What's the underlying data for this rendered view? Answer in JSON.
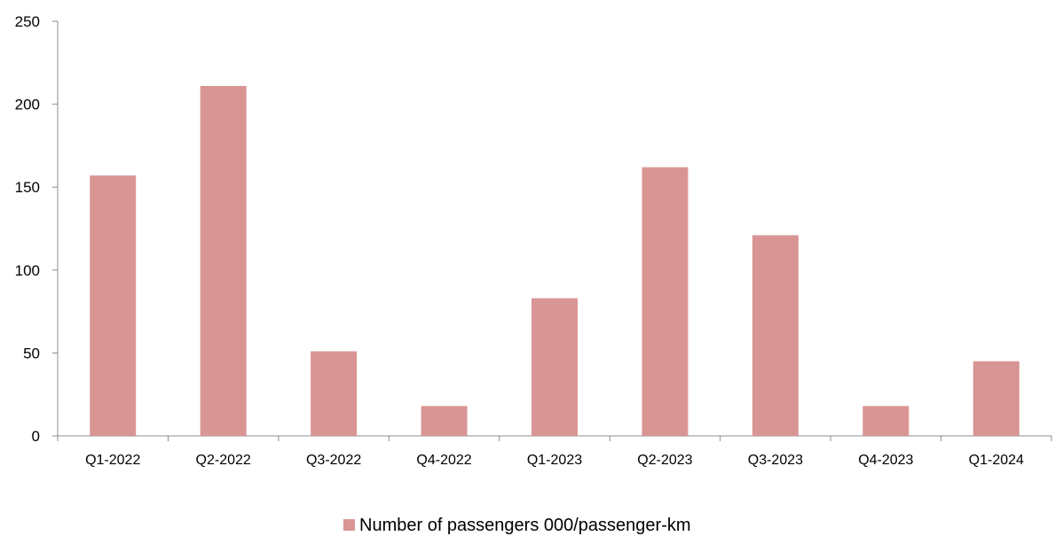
{
  "chart_data": {
    "type": "bar",
    "categories": [
      "Q1-2022",
      "Q2-2022",
      "Q3-2022",
      "Q4-2022",
      "Q1-2023",
      "Q2-2023",
      "Q3-2023",
      "Q4-2023",
      "Q1-2024"
    ],
    "series": [
      {
        "name": "Number of passengers 000/passenger-km",
        "values": [
          157,
          211,
          51,
          18,
          83,
          162,
          121,
          18,
          45
        ]
      }
    ],
    "ylim": [
      0,
      250
    ],
    "yticks": [
      0,
      50,
      100,
      150,
      200,
      250
    ],
    "title": "",
    "xlabel": "",
    "ylabel": "",
    "grid": false,
    "legend": "bottom-center",
    "bar_color": "#d99594",
    "axis_color": "#8c8c8c"
  }
}
